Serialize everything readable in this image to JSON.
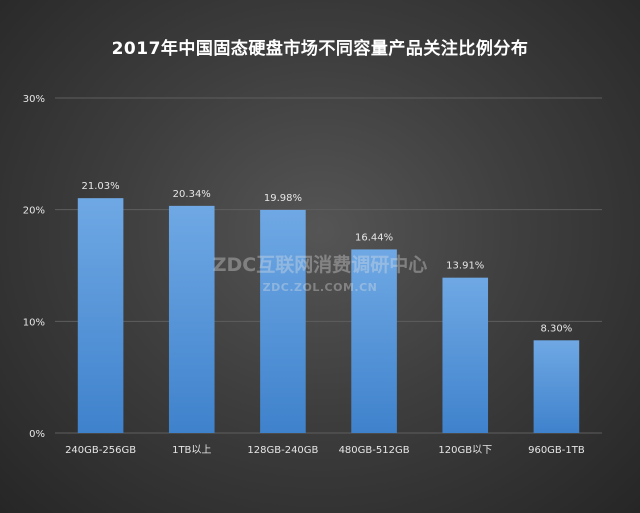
{
  "chart_data": {
    "type": "bar",
    "title": "2017年中国固态硬盘市场不同容量产品关注比例分布",
    "categories": [
      "240GB-256GB",
      "1TB以上",
      "128GB-240GB",
      "480GB-512GB",
      "120GB以下",
      "960GB-1TB"
    ],
    "values": [
      21.03,
      20.34,
      19.98,
      16.44,
      13.91,
      8.3
    ],
    "value_labels": [
      "21.03%",
      "20.34%",
      "19.98%",
      "16.44%",
      "13.91%",
      "8.30%"
    ],
    "ylim": [
      0,
      30
    ],
    "yticks": [
      0,
      10,
      20,
      30
    ],
    "ytick_labels": [
      "0%",
      "10%",
      "20%",
      "30%"
    ],
    "grid": true,
    "xlabel": "",
    "ylabel": ""
  },
  "watermark": {
    "main": "ZDC互联网消费调研中心",
    "sub": "ZDC.ZOL.COM.CN"
  },
  "colors": {
    "bar_top": "#6fa8e4",
    "bar_bottom": "#3f82cc",
    "text": "#e6e6e6",
    "grid": "#5e5e5e"
  }
}
